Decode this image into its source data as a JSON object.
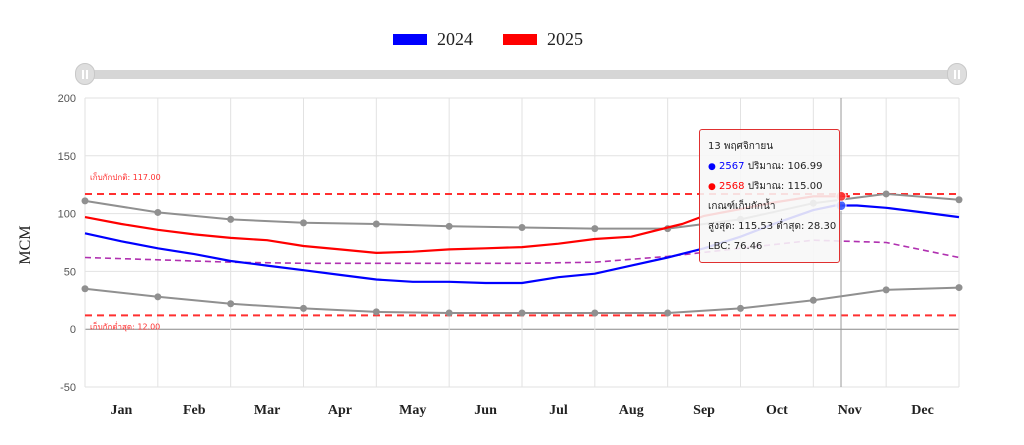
{
  "legend": {
    "items": [
      {
        "label": "2024",
        "color": "#0000ff"
      },
      {
        "label": "2025",
        "color": "#ff0000"
      }
    ]
  },
  "tooltip": {
    "date": "13 พฤศจิกายน",
    "series1_year": "2567",
    "series1_text": "ปริมาณ: 106.99",
    "series2_year": "2568",
    "series2_text": "ปริมาณ: 115.00",
    "criteria_title": "เกณฑ์เก็บกักน้ำ",
    "criteria_values": "สูงสุด: 115.53 ต่ำสุด: 28.30",
    "lbc": "LBC: 76.46"
  },
  "chart_data": {
    "type": "line",
    "title": "",
    "xlabel": "",
    "ylabel": "MCM",
    "ylim": [
      -50,
      200
    ],
    "yticks": [
      "-50",
      "0",
      "50",
      "100",
      "150",
      "200"
    ],
    "months": [
      "Jan",
      "Feb",
      "Mar",
      "Apr",
      "May",
      "Jun",
      "Jul",
      "Aug",
      "Sep",
      "Oct",
      "Nov",
      "Dec"
    ],
    "grid": true,
    "legend_position": "top-center",
    "reference_lines": [
      {
        "label": "เก็บกักปกติ: 117.00",
        "value": 117,
        "color": "#ff3030"
      },
      {
        "label": "เก็บกักต่ำสุด: 12.00",
        "value": 12,
        "color": "#ff3030"
      }
    ],
    "series": [
      {
        "name": "2024",
        "color": "#0000ff",
        "x": [
          0,
          0.5,
          1,
          1.5,
          2,
          2.5,
          3,
          3.5,
          4,
          4.5,
          5,
          5.5,
          6,
          6.5,
          7,
          7.5,
          8,
          8.5,
          9,
          9.5,
          10,
          10.3,
          10.6,
          11,
          11.5,
          12
        ],
        "y": [
          83,
          76,
          70,
          65,
          59,
          55,
          51,
          47,
          43,
          41,
          41,
          40,
          40,
          45,
          48,
          55,
          62,
          70,
          80,
          92,
          103,
          107,
          107,
          105,
          101,
          97
        ]
      },
      {
        "name": "2025",
        "color": "#ff0000",
        "x": [
          0,
          0.5,
          1,
          1.5,
          2,
          2.5,
          3,
          3.5,
          4,
          4.5,
          5,
          5.5,
          6,
          6.5,
          7,
          7.5,
          8,
          8.2,
          8.5,
          9,
          9.5,
          10,
          10.5
        ],
        "y": [
          97,
          91,
          86,
          82,
          79,
          77,
          72,
          69,
          66,
          67,
          69,
          70,
          71,
          74,
          78,
          80,
          88,
          91,
          98,
          104,
          110,
          115,
          115
        ]
      },
      {
        "name": "",
        "color": "#909090",
        "markers": true,
        "x": [
          0,
          1,
          2,
          3,
          4,
          5,
          6,
          7,
          8,
          9,
          10,
          11,
          12
        ],
        "y": [
          111,
          101,
          95,
          92,
          91,
          89,
          88,
          87,
          87,
          95,
          109,
          117,
          112
        ]
      },
      {
        "name": "",
        "color": "#909090",
        "markers": true,
        "x": [
          0,
          1,
          2,
          3,
          4,
          5,
          6,
          7,
          8,
          9,
          10,
          11,
          12
        ],
        "y": [
          35,
          28,
          22,
          18,
          15,
          14,
          14,
          14,
          14,
          18,
          25,
          34,
          36
        ]
      },
      {
        "name": "",
        "color": "#b030b0",
        "dashed": true,
        "x": [
          0,
          1,
          2,
          3,
          4,
          5,
          6,
          7,
          8,
          9,
          10,
          11,
          12
        ],
        "y": [
          62,
          60,
          58,
          57,
          57,
          57,
          57,
          58,
          63,
          70,
          77,
          75,
          62
        ]
      }
    ],
    "crosshair_x": 10.38
  }
}
